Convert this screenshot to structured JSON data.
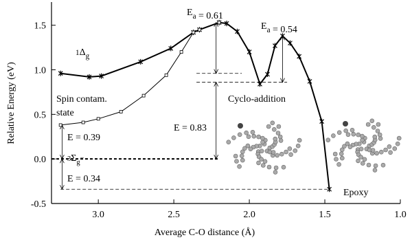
{
  "chart_data": {
    "type": "line",
    "xlabel": "Average C-O distance (Å)",
    "ylabel": "Relative Energy (eV)",
    "xlim": [
      3.31,
      1.0
    ],
    "ylim": [
      -0.5,
      1.76
    ],
    "xticks": [
      {
        "value": 3.0,
        "label": "3.0"
      },
      {
        "value": 2.5,
        "label": "2.5"
      },
      {
        "value": 2.0,
        "label": "2.0"
      },
      {
        "value": 1.5,
        "label": "1.5"
      },
      {
        "value": 1.0,
        "label": "1.0"
      }
    ],
    "yticks": [
      -0.5,
      {
        "value": 0.0,
        "label": "0.0"
      },
      0.5,
      {
        "value": 1.0,
        "label": "1.0"
      },
      1.5
    ],
    "series": [
      {
        "marker": "star",
        "color": "#000000",
        "x": [
          3.25,
          3.06,
          2.98,
          2.72,
          2.52,
          2.37,
          2.33,
          2.2,
          2.15,
          2.08,
          2.0,
          1.93,
          1.88,
          1.83,
          1.78,
          1.73,
          1.67,
          1.6,
          1.52,
          1.47
        ],
        "values": [
          0.96,
          0.92,
          0.93,
          1.09,
          1.24,
          1.42,
          1.45,
          1.53,
          1.52,
          1.43,
          1.2,
          0.84,
          0.95,
          1.27,
          1.38,
          1.3,
          1.15,
          0.87,
          0.42,
          -0.34
        ]
      },
      {
        "marker": "square",
        "color": "#000000",
        "x": [
          3.25,
          3.1,
          3.0,
          2.85,
          2.7,
          2.55,
          2.45,
          2.37,
          2.33,
          2.2
        ],
        "values": [
          0.38,
          0.41,
          0.45,
          0.53,
          0.71,
          0.94,
          1.2,
          1.42,
          1.45,
          1.53
        ]
      }
    ],
    "levels": [
      {
        "y": 0.0,
        "from": 3.31,
        "to": 2.2,
        "style": "bold"
      },
      {
        "y": -0.34,
        "from": 3.25,
        "to": 1.47,
        "style": "thin"
      },
      {
        "y": 0.96,
        "from": 2.35,
        "to": 2.05,
        "style": "thin"
      },
      {
        "y": 0.86,
        "from": 2.35,
        "to": 1.75,
        "style": "thin"
      }
    ],
    "arrows": [
      {
        "x": 3.24,
        "from": 0.0,
        "to": 0.38
      },
      {
        "x": 3.24,
        "from": 0.0,
        "to": -0.34
      },
      {
        "x": 2.22,
        "from": 0.0,
        "to": 0.86
      },
      {
        "x": 2.22,
        "from": 0.96,
        "to": 1.53
      },
      {
        "x": 1.78,
        "from": 0.86,
        "to": 1.38
      }
    ],
    "annotations": [
      [
        "E",
        "a",
        " = 0.61"
      ],
      [
        "E",
        "a",
        " = 0.54"
      ],
      [
        "1",
        "Δ",
        "g"
      ],
      [
        "Spin contam.",
        "state"
      ],
      [
        "Cyclo-addition"
      ],
      [
        "E = 0.39"
      ],
      [
        "3",
        "Σ",
        "g",
        "−"
      ],
      [
        "E = 0.34"
      ],
      [
        "E = 0.83"
      ],
      [
        "Epoxy"
      ]
    ]
  }
}
